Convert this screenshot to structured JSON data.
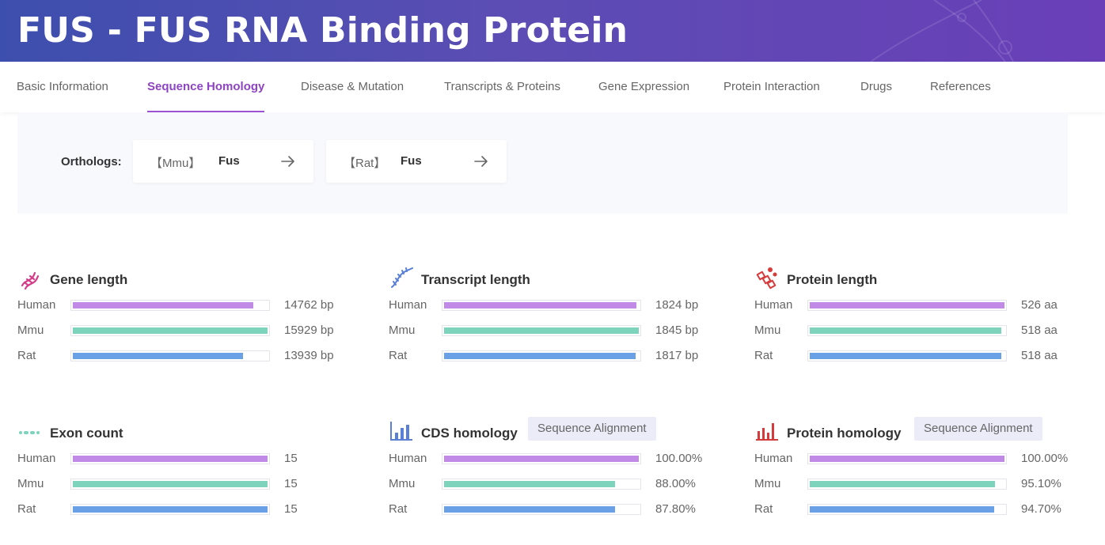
{
  "header": {
    "title": "FUS - FUS RNA Binding Protein"
  },
  "tabs": [
    {
      "label": "Basic Information"
    },
    {
      "label": "Sequence Homology"
    },
    {
      "label": "Disease & Mutation"
    },
    {
      "label": "Transcripts & Proteins"
    },
    {
      "label": "Gene Expression"
    },
    {
      "label": "Protein Interaction"
    },
    {
      "label": "Drugs"
    },
    {
      "label": "References"
    }
  ],
  "orthologs": {
    "label": "Orthologs:",
    "items": [
      {
        "species": "【Mmu】",
        "gene": "Fus"
      },
      {
        "species": "【Rat】",
        "gene": "Fus"
      }
    ]
  },
  "colors": {
    "human": "#c08ae6",
    "mmu": "#7ed3bc",
    "rat": "#6aa0e6",
    "accent": "#8e44c4"
  },
  "cards": {
    "gene_length": {
      "title": "Gene length",
      "rows": [
        {
          "label": "Human",
          "value": "14762 bp",
          "fraction": 0.927
        },
        {
          "label": "Mmu",
          "value": "15929 bp",
          "fraction": 1.0
        },
        {
          "label": "Rat",
          "value": "13939 bp",
          "fraction": 0.875
        }
      ]
    },
    "transcript_length": {
      "title": "Transcript length",
      "rows": [
        {
          "label": "Human",
          "value": "1824 bp",
          "fraction": 0.989
        },
        {
          "label": "Mmu",
          "value": "1845 bp",
          "fraction": 1.0
        },
        {
          "label": "Rat",
          "value": "1817 bp",
          "fraction": 0.985
        }
      ]
    },
    "protein_length": {
      "title": "Protein length",
      "rows": [
        {
          "label": "Human",
          "value": "526 aa",
          "fraction": 1.0
        },
        {
          "label": "Mmu",
          "value": "518 aa",
          "fraction": 0.985
        },
        {
          "label": "Rat",
          "value": "518 aa",
          "fraction": 0.985
        }
      ]
    },
    "exon_count": {
      "title": "Exon count",
      "rows": [
        {
          "label": "Human",
          "value": "15",
          "fraction": 1.0
        },
        {
          "label": "Mmu",
          "value": "15",
          "fraction": 1.0
        },
        {
          "label": "Rat",
          "value": "15",
          "fraction": 1.0
        }
      ]
    },
    "cds_homology": {
      "title": "CDS homology",
      "button": "Sequence Alignment",
      "rows": [
        {
          "label": "Human",
          "value": "100.00%",
          "fraction": 1.0
        },
        {
          "label": "Mmu",
          "value": "88.00%",
          "fraction": 0.88
        },
        {
          "label": "Rat",
          "value": "87.80%",
          "fraction": 0.878
        }
      ]
    },
    "protein_homology": {
      "title": "Protein homology",
      "button": "Sequence Alignment",
      "rows": [
        {
          "label": "Human",
          "value": "100.00%",
          "fraction": 1.0
        },
        {
          "label": "Mmu",
          "value": "95.10%",
          "fraction": 0.951
        },
        {
          "label": "Rat",
          "value": "94.70%",
          "fraction": 0.947
        }
      ]
    }
  }
}
